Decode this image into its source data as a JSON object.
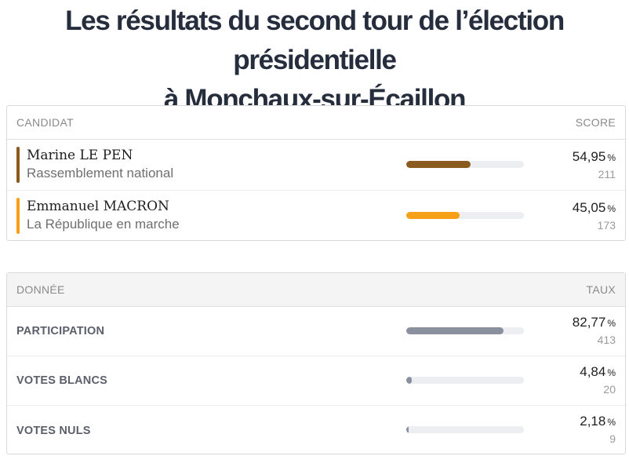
{
  "title": {
    "line1": "Les résultats du second tour de l’élection présidentielle",
    "line2": "à Monchaux-sur-Écaillon"
  },
  "results": {
    "header_left": "CANDIDAT",
    "header_right": "SCORE",
    "candidates": [
      {
        "name": "Marine LE PEN",
        "party": "Rassemblement national",
        "percent_label": "54,95",
        "percent": 54.95,
        "votes": "211",
        "color": "#8a5a1e"
      },
      {
        "name": "Emmanuel MACRON",
        "party": "La République en marche",
        "percent_label": "45,05",
        "percent": 45.05,
        "votes": "173",
        "color": "#f5a016"
      }
    ]
  },
  "data": {
    "header_left": "DONNÉE",
    "header_right": "TAUX",
    "color": "#8a909e",
    "rows": [
      {
        "label": "PARTICIPATION",
        "percent_label": "82,77",
        "percent": 82.77,
        "count": "413"
      },
      {
        "label": "VOTES BLANCS",
        "percent_label": "4,84",
        "percent": 4.84,
        "count": "20"
      },
      {
        "label": "VOTES NULS",
        "percent_label": "2,18",
        "percent": 2.18,
        "count": "9"
      }
    ]
  },
  "unit": "%"
}
